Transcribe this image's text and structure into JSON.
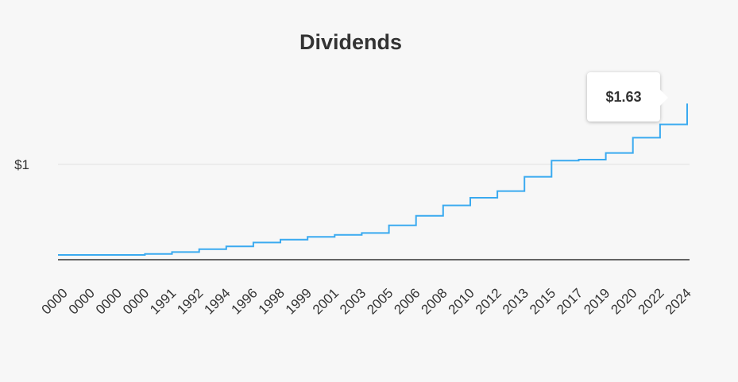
{
  "chart_data": {
    "type": "line",
    "title": "Dividends",
    "xlabel": "",
    "ylabel": "",
    "y_tick_labels": [
      {
        "value": 1,
        "label": "$1"
      }
    ],
    "ylim": [
      0,
      1.75
    ],
    "grid": true,
    "line_color": "#3aaaf0",
    "x_tick_labels": [
      "0000",
      "0000",
      "0000",
      "0000",
      "1991",
      "1992",
      "1994",
      "1996",
      "1998",
      "1999",
      "2001",
      "2003",
      "2005",
      "2006",
      "2008",
      "2010",
      "2012",
      "2013",
      "2015",
      "2017",
      "2019",
      "2020",
      "2022",
      "2024"
    ],
    "x": [
      "0000",
      "0000",
      "0000",
      "0000",
      "1991",
      "1992",
      "1994",
      "1996",
      "1998",
      "1999",
      "2001",
      "2003",
      "2005",
      "2006",
      "2008",
      "2010",
      "2012",
      "2013",
      "2015",
      "2017",
      "2019",
      "2020",
      "2022",
      "2024"
    ],
    "series": [
      {
        "values": [
          0.05,
          0.05,
          0.05,
          0.06,
          0.08,
          0.11,
          0.14,
          0.18,
          0.21,
          0.24,
          0.26,
          0.28,
          0.36,
          0.46,
          0.57,
          0.65,
          0.72,
          0.87,
          1.04,
          1.05,
          1.12,
          1.28,
          1.42,
          1.63
        ]
      }
    ],
    "tooltip": {
      "label": "$1.63"
    }
  }
}
